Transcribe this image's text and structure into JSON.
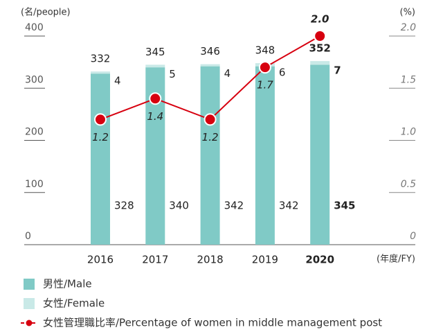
{
  "chart_data": {
    "type": "bar",
    "y_label": "(名/people)",
    "y2_label": "(%)",
    "x_label": "(年度/FY)",
    "categories": [
      "2016",
      "2017",
      "2018",
      "2019",
      "2020"
    ],
    "series": [
      {
        "name": "男性/Male",
        "color": "#80cac6",
        "values": [
          328,
          340,
          342,
          342,
          345
        ]
      },
      {
        "name": "女性/Female",
        "color": "#c9e9e7",
        "values": [
          4,
          5,
          4,
          6,
          7
        ]
      },
      {
        "name": "女性管理職比率/Percentage of women in middle management post",
        "color": "#d7000f",
        "type": "line",
        "axis": "y2",
        "values": [
          1.2,
          1.4,
          1.2,
          1.7,
          2.0
        ],
        "value_labels": [
          "1.2",
          "1.4",
          "1.2",
          "1.7",
          "2.0"
        ]
      }
    ],
    "total_labels": [
      332,
      345,
      346,
      348,
      352
    ],
    "ylim": [
      0,
      400
    ],
    "yticks": [
      0,
      100,
      200,
      300,
      400
    ],
    "y2lim": [
      0,
      2.0
    ],
    "y2ticks": [
      0,
      0.5,
      {
        "value": 1.0,
        "label": "1.0"
      },
      1.5,
      {
        "value": 2.0,
        "label": "2.0"
      }
    ],
    "stacked": true
  }
}
